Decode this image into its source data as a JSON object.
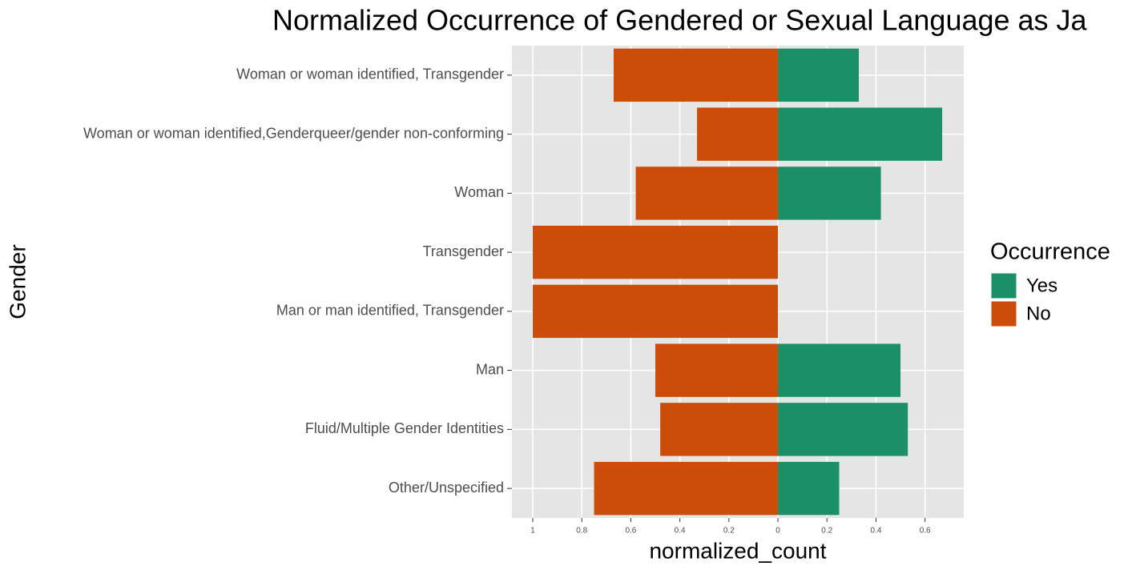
{
  "chart_data": {
    "type": "diverging-bar",
    "orientation": "horizontal",
    "title": "Normalized Occurrence of Gendered or Sexual Language as Ja",
    "x_label": "normalized_count",
    "y_label": "Gender",
    "legend_title": "Occurrence",
    "legend_position": "right",
    "categories": [
      "Woman or woman identified, Transgender",
      "Woman or woman identified,Genderqueer/gender non-conforming",
      "Woman",
      "Transgender",
      "Man or man identified, Transgender",
      "Man",
      "Fluid/Multiple Gender Identities",
      "Other/Unspecified"
    ],
    "series": [
      {
        "name": "Yes",
        "color": "#1b9068",
        "values": [
          0.33,
          0.67,
          0.42,
          0,
          0,
          0.5,
          0.53,
          0.25
        ]
      },
      {
        "name": "No",
        "color": "#cc4c0a",
        "values": [
          -0.67,
          -0.33,
          -0.58,
          -1,
          -1,
          -0.5,
          -0.48,
          -0.75
        ]
      }
    ],
    "xlim": [
      -1.085,
      0.758
    ],
    "xticks": [
      {
        "value": -1,
        "label": "1"
      },
      {
        "value": -0.8,
        "label": "0.8"
      },
      {
        "value": -0.6,
        "label": "0.6"
      },
      {
        "value": -0.4,
        "label": "0.4"
      },
      {
        "value": -0.2,
        "label": "0.2"
      },
      0,
      0.2,
      0.4,
      0.6
    ],
    "grid": true
  }
}
